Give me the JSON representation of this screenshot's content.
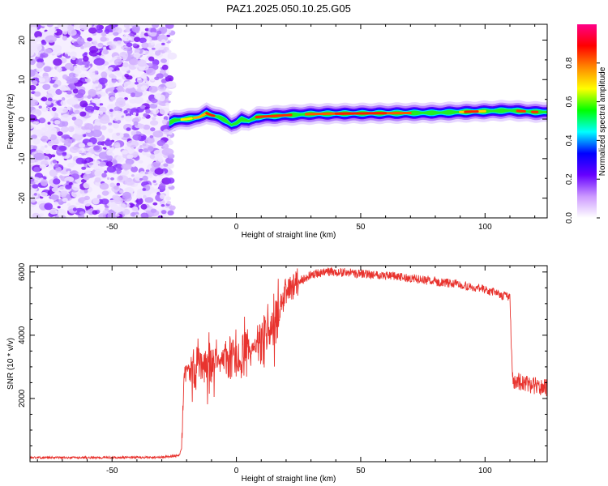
{
  "title": "PAZ1.2025.050.10.25.G05",
  "chart_data": [
    {
      "type": "heatmap",
      "name": "spectrogram",
      "xlabel": "Height of straight line (km)",
      "ylabel": "Frequency (Hz)",
      "xlim": [
        -83,
        125
      ],
      "ylim": [
        -25,
        24
      ],
      "xticks": [
        -50,
        0,
        50,
        100
      ],
      "yticks": [
        -20,
        -10,
        0,
        10,
        20
      ],
      "noise_region": [
        -83,
        -27
      ],
      "ridge": {
        "x": [
          -27,
          -25,
          -20,
          -15,
          -12,
          -10,
          -7,
          -4,
          -2,
          0,
          2,
          5,
          8,
          10,
          15,
          20,
          30,
          40,
          60,
          80,
          90,
          100,
          110,
          115,
          120,
          125
        ],
        "freq": [
          -1,
          -0.3,
          0,
          0.5,
          1.5,
          1,
          0.5,
          -0.5,
          -1.5,
          -1,
          0,
          -0.5,
          0.5,
          0.6,
          0.8,
          1,
          1.3,
          1.4,
          1.5,
          1.6,
          1.8,
          2,
          2.2,
          2,
          1.8,
          1.8
        ]
      },
      "colorbar": {
        "label": "Normalized spectral amplitude",
        "range": [
          0.0,
          1.0
        ],
        "ticks": [
          "0.0",
          "0.2",
          "0.4",
          "0.6",
          "0.8"
        ],
        "colors": [
          "#ffffff",
          "#cc99ff",
          "#6600ff",
          "#0000ff",
          "#00ffff",
          "#00ff00",
          "#ffff00",
          "#ff8800",
          "#ff0000",
          "#ff0088"
        ]
      }
    },
    {
      "type": "line",
      "name": "snr",
      "xlabel": "Height of straight line (km)",
      "ylabel": "SNR (10 * v/v)",
      "xlim": [
        -83,
        125
      ],
      "ylim": [
        0,
        6200
      ],
      "xticks": [
        -50,
        0,
        50,
        100
      ],
      "yticks": [
        2000,
        4000,
        6000
      ],
      "color": "#e8332e",
      "envelope": {
        "x": [
          -83,
          -50,
          -30,
          -23,
          -22,
          -21,
          -20,
          -15,
          -10,
          -5,
          0,
          5,
          10,
          15,
          17,
          20,
          25,
          30,
          35,
          40,
          50,
          60,
          70,
          80,
          90,
          100,
          105,
          110,
          111,
          115,
          120,
          125
        ],
        "snr": [
          130,
          130,
          140,
          200,
          400,
          2800,
          2900,
          3000,
          3100,
          3300,
          3200,
          3500,
          3900,
          4200,
          4700,
          5400,
          5700,
          5900,
          6000,
          6000,
          5950,
          5900,
          5800,
          5700,
          5600,
          5450,
          5300,
          5200,
          2600,
          2500,
          2400,
          2350
        ]
      }
    }
  ]
}
